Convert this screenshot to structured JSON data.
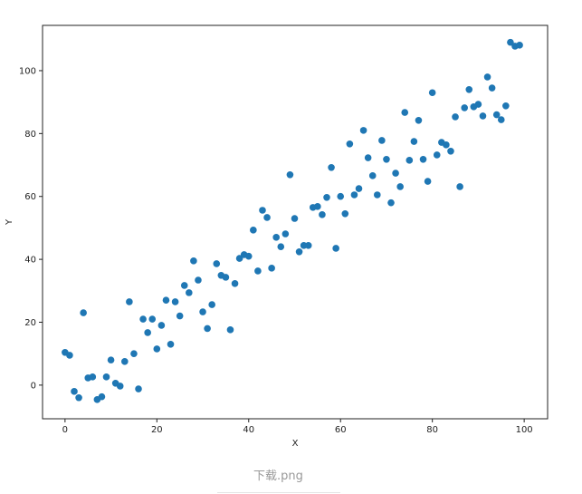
{
  "chart_data": {
    "type": "scatter",
    "title": "",
    "xlabel": "X",
    "ylabel": "Y",
    "xlim": [
      -4.9,
      105.1
    ],
    "ylim": [
      -10.7,
      114.4
    ],
    "xticks": [
      0,
      20,
      40,
      60,
      80,
      100
    ],
    "yticks": [
      0,
      20,
      40,
      60,
      80,
      100
    ],
    "grid": false,
    "color": "#1f77b4",
    "x": [
      0,
      1,
      2,
      3,
      4,
      5,
      6,
      7,
      8,
      9,
      10,
      11,
      12,
      13,
      14,
      15,
      16,
      17,
      18,
      19,
      20,
      21,
      22,
      23,
      24,
      25,
      26,
      27,
      28,
      29,
      30,
      31,
      32,
      33,
      34,
      35,
      36,
      37,
      38,
      39,
      40,
      41,
      42,
      43,
      44,
      45,
      46,
      47,
      48,
      49,
      50,
      51,
      52,
      53,
      54,
      55,
      56,
      57,
      58,
      59,
      60,
      61,
      62,
      63,
      64,
      65,
      66,
      67,
      68,
      69,
      70,
      71,
      72,
      73,
      74,
      75,
      76,
      77,
      78,
      79,
      80,
      81,
      82,
      83,
      84,
      85,
      86,
      87,
      88,
      89,
      90,
      91,
      92,
      93,
      94,
      95,
      96,
      97,
      98,
      99
    ],
    "y": [
      10.4,
      9.5,
      -2,
      -4,
      23,
      2.3,
      2.6,
      -4.6,
      -3.7,
      2.6,
      8,
      0.6,
      -0.3,
      7.5,
      26.5,
      10,
      -1.2,
      21,
      16.7,
      21,
      11.5,
      19,
      27,
      13,
      26.5,
      22,
      31.7,
      29.4,
      39.5,
      33.4,
      23.3,
      18,
      25.6,
      38.6,
      34.9,
      34.3,
      17.6,
      32.3,
      40.3,
      41.5,
      41,
      49.3,
      36.3,
      55.6,
      53.3,
      37.2,
      47,
      44,
      48.1,
      66.9,
      53,
      42.4,
      44.4,
      44.4,
      56.5,
      56.8,
      54.2,
      59.7,
      69.2,
      43.5,
      60,
      54.5,
      76.7,
      60.5,
      62.5,
      81,
      72.3,
      66.6,
      60.5,
      77.8,
      71.8,
      58,
      67.4,
      63.1,
      86.7,
      71.5,
      77.5,
      84.2,
      71.8,
      64.8,
      93,
      73.2,
      77.2,
      76.4,
      74.4,
      85.3,
      63.1,
      88.2,
      94,
      88.5,
      89.3,
      85.6,
      98,
      94.5,
      86,
      84.4,
      88.8,
      109,
      107.8,
      108.1
    ]
  },
  "caption": "下载.png"
}
